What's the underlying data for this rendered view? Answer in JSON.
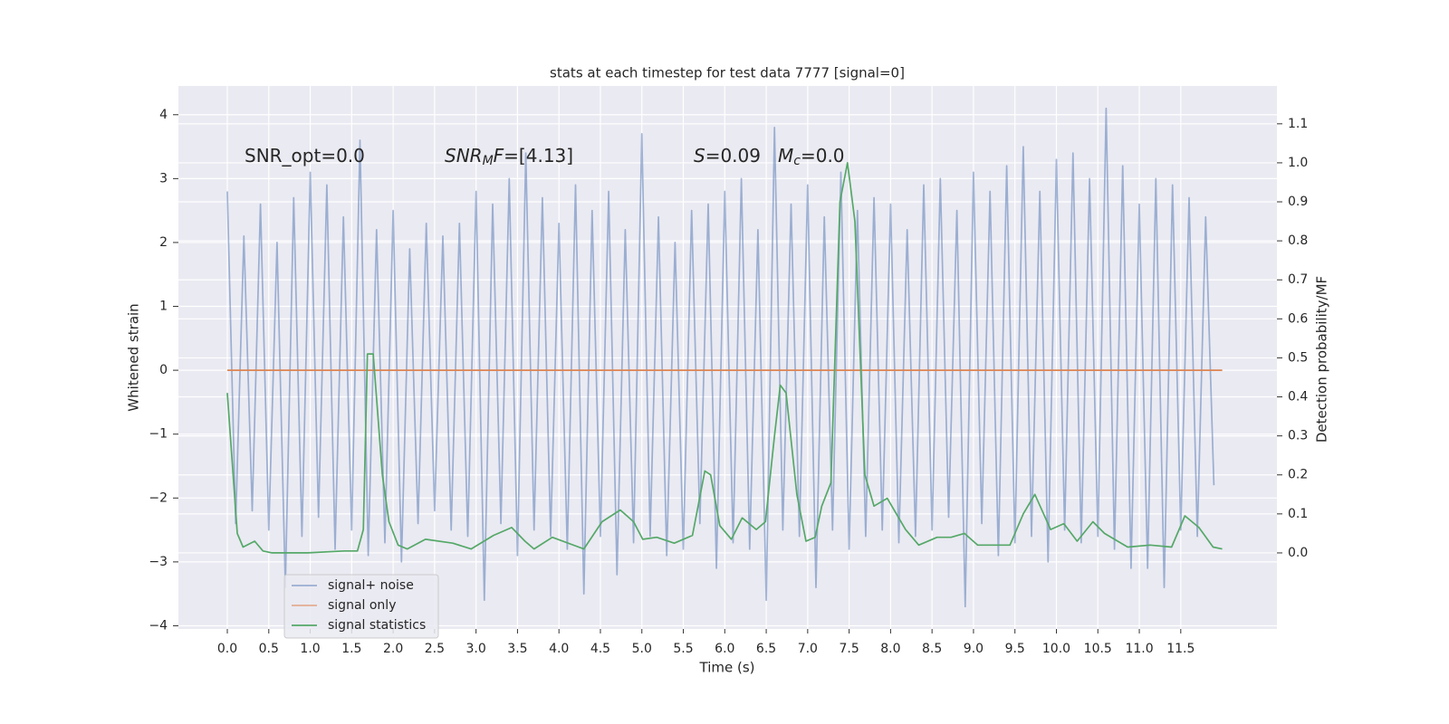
{
  "chart_data": {
    "type": "line",
    "title": "stats at each timestep for test data 7777 [signal=0]",
    "xlabel": "Time (s)",
    "ylabel": "Whitened strain",
    "y2label": "Detection probability/MF",
    "annotations": [
      [
        {
          "text": "SNR_opt=0.0"
        }
      ],
      [
        {
          "text": "SNR",
          "italic": true
        },
        {
          "text": "M",
          "italic": true,
          "sub": true
        },
        {
          "text": "F",
          "italic": true
        },
        {
          "text": "=[4.13]"
        }
      ],
      [
        {
          "text": "S",
          "italic": true
        },
        {
          "text": "=0.09"
        }
      ],
      [
        {
          "text": "M",
          "italic": true
        },
        {
          "text": "c",
          "italic": true,
          "sub": true
        },
        {
          "text": "=0.0"
        }
      ]
    ],
    "series": [
      {
        "name": "signal+ noise",
        "color": "#4c72b0",
        "x": [
          0.0,
          0.1,
          0.2,
          0.3,
          0.4,
          0.5,
          0.6,
          0.7,
          0.8,
          0.9,
          1.0,
          1.1,
          1.2,
          1.3,
          1.4,
          1.5,
          1.6,
          1.7,
          1.8,
          1.9,
          2.0,
          2.1,
          2.2,
          2.3,
          2.4,
          2.5,
          2.6,
          2.7,
          2.8,
          2.9,
          3.0,
          3.1,
          3.2,
          3.3,
          3.4,
          3.5,
          3.6,
          3.7,
          3.8,
          3.9,
          4.0,
          4.1,
          4.2,
          4.3,
          4.4,
          4.5,
          4.6,
          4.7,
          4.8,
          4.9,
          5.0,
          5.1,
          5.2,
          5.3,
          5.4,
          5.5,
          5.6,
          5.7,
          5.8,
          5.9,
          6.0,
          6.1,
          6.2,
          6.3,
          6.4,
          6.5,
          6.6,
          6.7,
          6.8,
          6.9,
          7.0,
          7.1,
          7.2,
          7.3,
          7.4,
          7.5,
          7.6,
          7.7,
          7.8,
          7.9,
          8.0,
          8.1,
          8.2,
          8.3,
          8.4,
          8.5,
          8.6,
          8.7,
          8.8,
          8.9,
          9.0,
          9.1,
          9.2,
          9.3,
          9.4,
          9.5,
          9.6,
          9.7,
          9.8,
          9.9,
          10.0,
          10.1,
          10.2,
          10.3,
          10.4,
          10.5,
          10.6,
          10.7,
          10.8,
          10.9,
          11.0,
          11.1,
          11.2,
          11.3,
          11.4,
          11.5,
          11.6,
          11.7,
          11.8,
          11.9
        ],
        "values": [
          2.8,
          -2.4,
          2.1,
          -2.2,
          2.6,
          -2.5,
          2.0,
          -3.4,
          2.7,
          -2.6,
          3.1,
          -2.3,
          2.9,
          -2.8,
          2.4,
          -2.5,
          3.6,
          -2.9,
          2.2,
          -2.7,
          2.5,
          -3.0,
          1.9,
          -2.4,
          2.3,
          -2.2,
          2.1,
          -2.5,
          2.3,
          -2.6,
          2.8,
          -3.6,
          2.6,
          -2.4,
          3.0,
          -2.9,
          3.4,
          -2.5,
          2.7,
          -2.6,
          2.3,
          -2.8,
          2.9,
          -3.5,
          2.5,
          -2.6,
          2.8,
          -3.2,
          2.2,
          -2.7,
          3.7,
          -2.6,
          2.4,
          -2.9,
          2.0,
          -2.8,
          2.5,
          -2.4,
          2.6,
          -3.1,
          2.8,
          -2.7,
          3.0,
          -2.8,
          2.2,
          -3.6,
          3.8,
          -2.5,
          2.6,
          -2.6,
          2.9,
          -3.4,
          2.4,
          -2.5,
          3.1,
          -2.8,
          2.5,
          -2.6,
          2.7,
          -2.5,
          2.6,
          -2.7,
          2.2,
          -2.6,
          2.9,
          -2.5,
          3.0,
          -2.3,
          2.5,
          -3.7,
          3.1,
          -2.4,
          2.8,
          -2.9,
          3.2,
          -2.7,
          3.5,
          -2.6,
          2.8,
          -3.0,
          3.3,
          -2.5,
          3.4,
          -2.7,
          3.0,
          -2.6,
          4.1,
          -2.8,
          3.2,
          -3.1,
          2.6,
          -3.1,
          3.0,
          -3.4,
          2.9,
          -2.5,
          2.7,
          -2.6,
          2.4,
          -1.8
        ]
      },
      {
        "name": "signal only",
        "color": "#dd8452",
        "x": [
          0.0,
          12.0
        ],
        "values": [
          0,
          0
        ]
      },
      {
        "name": "signal statistics",
        "color": "#55a868",
        "axis": "y2",
        "x": [
          0.0,
          0.12,
          0.19,
          0.33,
          0.43,
          0.54,
          0.97,
          1.41,
          1.57,
          1.64,
          1.69,
          1.76,
          1.87,
          1.95,
          2.06,
          2.17,
          2.39,
          2.72,
          2.94,
          3.21,
          3.43,
          3.59,
          3.7,
          3.92,
          4.3,
          4.52,
          4.74,
          4.9,
          5.01,
          5.18,
          5.39,
          5.61,
          5.76,
          5.83,
          5.94,
          6.08,
          6.21,
          6.38,
          6.49,
          6.6,
          6.67,
          6.74,
          6.87,
          6.98,
          7.09,
          7.17,
          7.28,
          7.39,
          7.48,
          7.57,
          7.69,
          7.8,
          7.96,
          8.18,
          8.34,
          8.56,
          8.73,
          8.89,
          9.05,
          9.27,
          9.44,
          9.6,
          9.74,
          9.93,
          10.09,
          10.25,
          10.44,
          10.58,
          10.86,
          11.13,
          11.39,
          11.55,
          11.72,
          11.89,
          12.0
        ],
        "values": [
          0.41,
          0.05,
          0.015,
          0.03,
          0.005,
          0.0,
          0.0,
          0.005,
          0.005,
          0.06,
          0.51,
          0.51,
          0.2,
          0.08,
          0.02,
          0.01,
          0.035,
          0.025,
          0.01,
          0.045,
          0.065,
          0.03,
          0.01,
          0.04,
          0.01,
          0.08,
          0.11,
          0.08,
          0.035,
          0.04,
          0.025,
          0.045,
          0.21,
          0.2,
          0.07,
          0.035,
          0.09,
          0.06,
          0.08,
          0.3,
          0.43,
          0.41,
          0.15,
          0.03,
          0.04,
          0.12,
          0.18,
          0.9,
          1.0,
          0.85,
          0.2,
          0.12,
          0.14,
          0.06,
          0.02,
          0.04,
          0.04,
          0.05,
          0.02,
          0.02,
          0.02,
          0.1,
          0.15,
          0.06,
          0.075,
          0.03,
          0.08,
          0.05,
          0.015,
          0.02,
          0.015,
          0.095,
          0.065,
          0.015,
          0.01
        ]
      }
    ],
    "xlim": [
      -0.59,
      12.66
    ],
    "ylim": [
      -4.05,
      4.45
    ],
    "y2lim": [
      -0.195,
      1.197
    ],
    "xticks": [
      {
        "value": 0,
        "label": "0.0"
      },
      0.5,
      {
        "value": 1,
        "label": "1.0"
      },
      1.5,
      {
        "value": 2,
        "label": "2.0"
      },
      2.5,
      {
        "value": 3,
        "label": "3.0"
      },
      3.5,
      {
        "value": 4,
        "label": "4.0"
      },
      4.5,
      {
        "value": 5,
        "label": "5.0"
      },
      5.5,
      {
        "value": 6,
        "label": "6.0"
      },
      6.5,
      {
        "value": 7,
        "label": "7.0"
      },
      7.5,
      {
        "value": 8,
        "label": "8.0"
      },
      8.5,
      {
        "value": 9,
        "label": "9.0"
      },
      9.5,
      {
        "value": 10,
        "label": "10.0"
      },
      10.5,
      {
        "value": 11,
        "label": "11.0"
      },
      11.5
    ],
    "yticks": [
      {
        "value": -4,
        "label": "−4"
      },
      {
        "value": -3,
        "label": "−3"
      },
      {
        "value": -2,
        "label": "−2"
      },
      {
        "value": -1,
        "label": "−1"
      },
      0,
      1,
      2,
      3,
      4
    ],
    "y2ticks": [
      {
        "value": 0,
        "label": "0.0"
      },
      0.1,
      0.2,
      0.3,
      0.4,
      0.5,
      0.6,
      0.7,
      0.8,
      0.9,
      {
        "value": 1,
        "label": "1.0"
      },
      1.1
    ],
    "grid": true,
    "legend": "lower left"
  }
}
